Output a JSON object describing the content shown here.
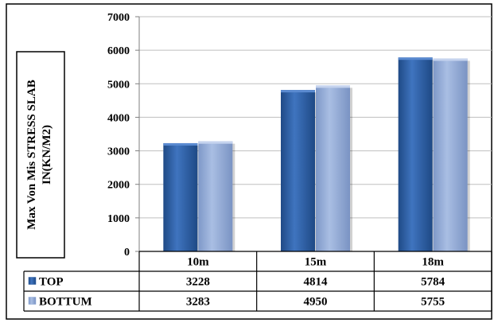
{
  "chart_data": {
    "type": "bar",
    "categories": [
      "10m",
      "15m",
      "18m"
    ],
    "series": [
      {
        "name": "TOP",
        "values": [
          3228,
          4814,
          5784
        ],
        "color": "#2E5FA3"
      },
      {
        "name": "BOTTUM",
        "values": [
          3283,
          4950,
          5755
        ],
        "color": "#8FA9D8"
      }
    ],
    "ylabel_lines": [
      "Max Von Mis  STRESS SLAB",
      "IN(KN/M2)"
    ],
    "ylim": [
      0,
      7000
    ],
    "yticks": [
      "0",
      "1000",
      "2000",
      "3000",
      "4000",
      "5000",
      "6000",
      "7000"
    ],
    "grid": true,
    "legend": "data-table"
  }
}
